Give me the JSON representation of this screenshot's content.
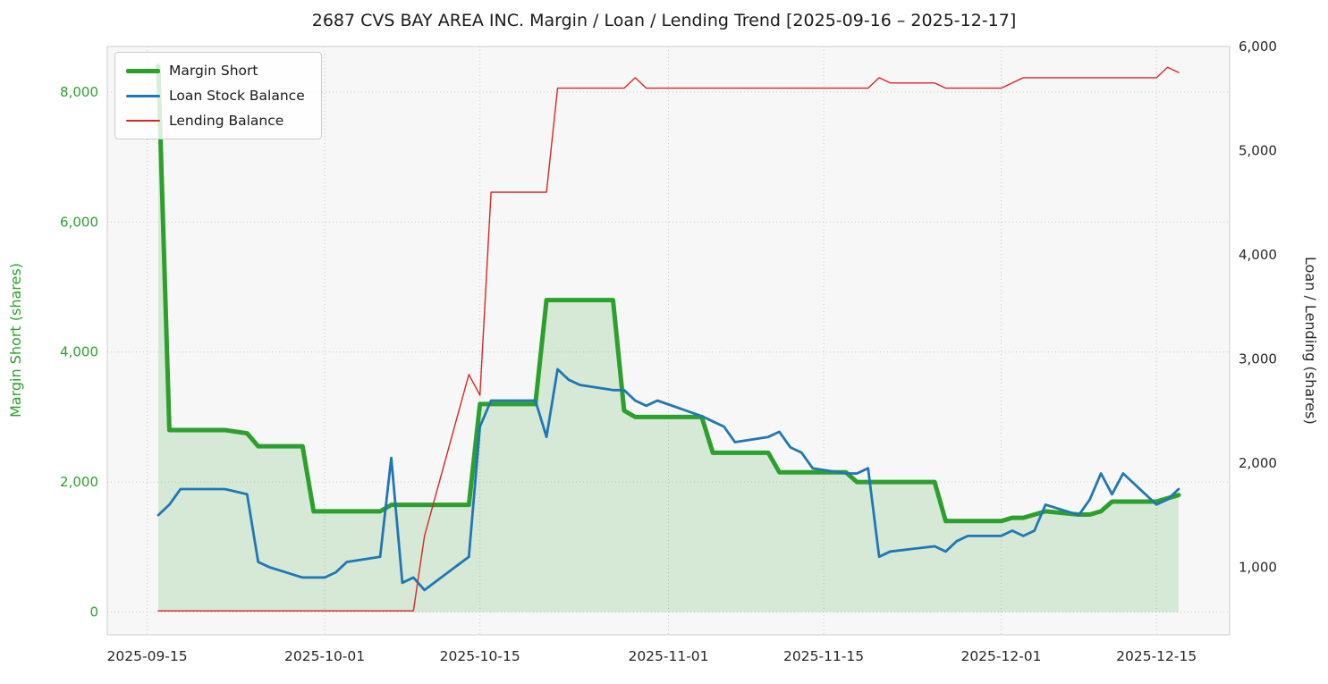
{
  "title": "2687 CVS BAY AREA INC. Margin / Loan / Lending Trend [2025-09-16 – 2025-12-17]",
  "colors": {
    "figure_bg": "#ffffff",
    "plot_bg": "#f7f7f7",
    "grid": "#c9c9c9",
    "border": "#cccccc",
    "margin_green": "#2ca02c",
    "loan_blue": "#1f77b4",
    "lending_red": "#d62728",
    "tick_text": "#262626"
  },
  "left_axis": {
    "label": "Margin Short (shares)",
    "color": "#2ca02c",
    "ticks": [
      {
        "v": 0,
        "label": "0"
      },
      {
        "v": 2000,
        "label": "2,000"
      },
      {
        "v": 4000,
        "label": "4,000"
      },
      {
        "v": 6000,
        "label": "6,000"
      },
      {
        "v": 8000,
        "label": "8,000"
      }
    ]
  },
  "right_axis": {
    "label": "Loan / Lending (shares)",
    "color": "#262626",
    "ticks": [
      {
        "v": 1000,
        "label": "1,000"
      },
      {
        "v": 2000,
        "label": "2,000"
      },
      {
        "v": 3000,
        "label": "3,000"
      },
      {
        "v": 4000,
        "label": "4,000"
      },
      {
        "v": 5000,
        "label": "5,000"
      },
      {
        "v": 6000,
        "label": "6,000"
      }
    ]
  },
  "x_axis": {
    "ticks": [
      {
        "date": "2025-09-15",
        "label": "2025-09-15"
      },
      {
        "date": "2025-10-01",
        "label": "2025-10-01"
      },
      {
        "date": "2025-10-15",
        "label": "2025-10-15"
      },
      {
        "date": "2025-11-01",
        "label": "2025-11-01"
      },
      {
        "date": "2025-11-15",
        "label": "2025-11-15"
      },
      {
        "date": "2025-12-01",
        "label": "2025-12-01"
      },
      {
        "date": "2025-12-15",
        "label": "2025-12-15"
      }
    ]
  },
  "legend": [
    {
      "label": "Margin Short",
      "color": "#2ca02c"
    },
    {
      "label": "Loan Stock Balance",
      "color": "#1f77b4"
    },
    {
      "label": "Lending Balance",
      "color": "#d62728"
    }
  ],
  "chart_data": {
    "type": "line",
    "title": "2687 CVS BAY AREA INC. Margin / Loan / Lending Trend [2025-09-16 – 2025-12-17]",
    "xlabel": "",
    "ylabel_left": "Margin Short (shares)",
    "ylabel_right": "Loan / Lending (shares)",
    "left_ylim": [
      -350,
      8700
    ],
    "right_ylim": [
      350,
      6000
    ],
    "x_margin_frac": 0.05,
    "grid": true,
    "legend_position": "upper-left",
    "x": [
      "2025-09-16",
      "2025-09-17",
      "2025-09-18",
      "2025-09-19",
      "2025-09-22",
      "2025-09-24",
      "2025-09-25",
      "2025-09-26",
      "2025-09-29",
      "2025-09-30",
      "2025-10-01",
      "2025-10-02",
      "2025-10-03",
      "2025-10-06",
      "2025-10-07",
      "2025-10-08",
      "2025-10-09",
      "2025-10-10",
      "2025-10-14",
      "2025-10-15",
      "2025-10-16",
      "2025-10-17",
      "2025-10-20",
      "2025-10-21",
      "2025-10-22",
      "2025-10-23",
      "2025-10-24",
      "2025-10-27",
      "2025-10-28",
      "2025-10-29",
      "2025-10-30",
      "2025-10-31",
      "2025-11-04",
      "2025-11-05",
      "2025-11-06",
      "2025-11-07",
      "2025-11-10",
      "2025-11-11",
      "2025-11-12",
      "2025-11-13",
      "2025-11-14",
      "2025-11-17",
      "2025-11-18",
      "2025-11-19",
      "2025-11-20",
      "2025-11-21",
      "2025-11-25",
      "2025-11-26",
      "2025-11-27",
      "2025-11-28",
      "2025-12-01",
      "2025-12-02",
      "2025-12-03",
      "2025-12-04",
      "2025-12-05",
      "2025-12-08",
      "2025-12-09",
      "2025-12-10",
      "2025-12-11",
      "2025-12-12",
      "2025-12-15",
      "2025-12-16",
      "2025-12-17"
    ],
    "series": [
      {
        "name": "Margin Short",
        "axis": "left",
        "color": "#2ca02c",
        "line_width": 5,
        "fill": true,
        "fill_opacity": 0.16,
        "values": [
          8400,
          2800,
          2800,
          2800,
          2800,
          2750,
          2550,
          2550,
          2550,
          1550,
          1550,
          1550,
          1550,
          1550,
          1650,
          1650,
          1650,
          1650,
          1650,
          3200,
          3200,
          3200,
          3200,
          4800,
          4800,
          4800,
          4800,
          4800,
          3100,
          3000,
          3000,
          3000,
          3000,
          2450,
          2450,
          2450,
          2450,
          2150,
          2150,
          2150,
          2150,
          2150,
          2000,
          2000,
          2000,
          2000,
          2000,
          1400,
          1400,
          1400,
          1400,
          1450,
          1450,
          1500,
          1550,
          1500,
          1500,
          1550,
          1700,
          1700,
          1700,
          1750,
          1800
        ]
      },
      {
        "name": "Loan Stock Balance",
        "axis": "right",
        "color": "#1f77b4",
        "line_width": 2.8,
        "fill": false,
        "values": [
          1500,
          1600,
          1750,
          1750,
          1750,
          1700,
          1050,
          1000,
          900,
          900,
          900,
          950,
          1050,
          1100,
          2050,
          850,
          900,
          780,
          1100,
          2350,
          2600,
          2600,
          2600,
          2250,
          2900,
          2800,
          2750,
          2700,
          2700,
          2600,
          2550,
          2600,
          2450,
          2400,
          2350,
          2200,
          2250,
          2300,
          2150,
          2100,
          1950,
          1900,
          1900,
          1950,
          1100,
          1150,
          1200,
          1150,
          1250,
          1300,
          1300,
          1350,
          1300,
          1350,
          1600,
          1500,
          1650,
          1900,
          1700,
          1900,
          1600,
          1650,
          1750
        ]
      },
      {
        "name": "Lending Balance",
        "axis": "right",
        "color": "#d62728",
        "line_width": 1.4,
        "fill": false,
        "values": [
          580,
          580,
          580,
          580,
          580,
          580,
          580,
          580,
          580,
          580,
          580,
          580,
          580,
          580,
          580,
          580,
          580,
          1300,
          2850,
          2650,
          4600,
          4600,
          4600,
          4600,
          5600,
          5600,
          5600,
          5600,
          5600,
          5700,
          5600,
          5600,
          5600,
          5600,
          5600,
          5600,
          5600,
          5600,
          5600,
          5600,
          5600,
          5600,
          5600,
          5600,
          5700,
          5650,
          5650,
          5600,
          5600,
          5600,
          5600,
          5650,
          5700,
          5700,
          5700,
          5700,
          5700,
          5700,
          5700,
          5700,
          5700,
          5800,
          5750
        ]
      }
    ]
  }
}
